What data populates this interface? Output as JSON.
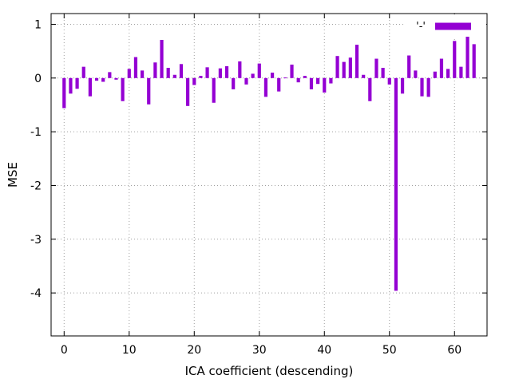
{
  "chart_data": {
    "type": "bar",
    "title": "",
    "xlabel": "ICA coefficient (descending)",
    "ylabel": "MSE",
    "xlim": [
      -2,
      65
    ],
    "ylim": [
      -4.8,
      1.2
    ],
    "grid": true,
    "grid_style": "dotted",
    "x_ticks": [
      0,
      10,
      20,
      30,
      40,
      50,
      60
    ],
    "x_tick_labels": [
      "0",
      "10",
      "20",
      "30",
      "40",
      "50",
      "60"
    ],
    "y_ticks": [
      1,
      0,
      -1,
      -2,
      -3,
      -4
    ],
    "y_tick_labels": [
      "1",
      "0",
      "-1",
      "-2",
      "-3",
      "-4"
    ],
    "legend": {
      "position": "top-right",
      "label": "'-'",
      "color": "#9400d3"
    },
    "series": [
      {
        "color": "#9400d3",
        "x": [
          0,
          1,
          2,
          3,
          4,
          5,
          6,
          7,
          8,
          9,
          10,
          11,
          12,
          13,
          14,
          15,
          16,
          17,
          18,
          19,
          20,
          21,
          22,
          23,
          24,
          25,
          26,
          27,
          28,
          29,
          30,
          31,
          32,
          33,
          34,
          35,
          36,
          37,
          38,
          39,
          40,
          41,
          42,
          43,
          44,
          45,
          46,
          47,
          48,
          49,
          50,
          51,
          52,
          53,
          54,
          55,
          56,
          57,
          58,
          59,
          60,
          61,
          62,
          63
        ],
        "values": [
          -0.56,
          -0.29,
          -0.2,
          0.21,
          -0.34,
          -0.05,
          -0.07,
          0.11,
          -0.03,
          -0.43,
          0.17,
          0.39,
          0.14,
          -0.49,
          0.29,
          0.71,
          0.19,
          0.06,
          0.26,
          -0.52,
          -0.13,
          0.04,
          0.2,
          -0.46,
          0.18,
          0.22,
          -0.21,
          0.31,
          -0.12,
          0.08,
          0.27,
          -0.35,
          0.1,
          -0.25,
          0.01,
          0.25,
          -0.08,
          0.04,
          -0.21,
          -0.11,
          -0.27,
          -0.1,
          0.41,
          0.3,
          0.38,
          0.62,
          0.06,
          -0.43,
          0.36,
          0.19,
          -0.12,
          -3.96,
          -0.29,
          0.42,
          0.14,
          -0.34,
          -0.35,
          0.12,
          0.36,
          0.17,
          0.69,
          0.21,
          0.95,
          0.63
        ]
      }
    ]
  }
}
